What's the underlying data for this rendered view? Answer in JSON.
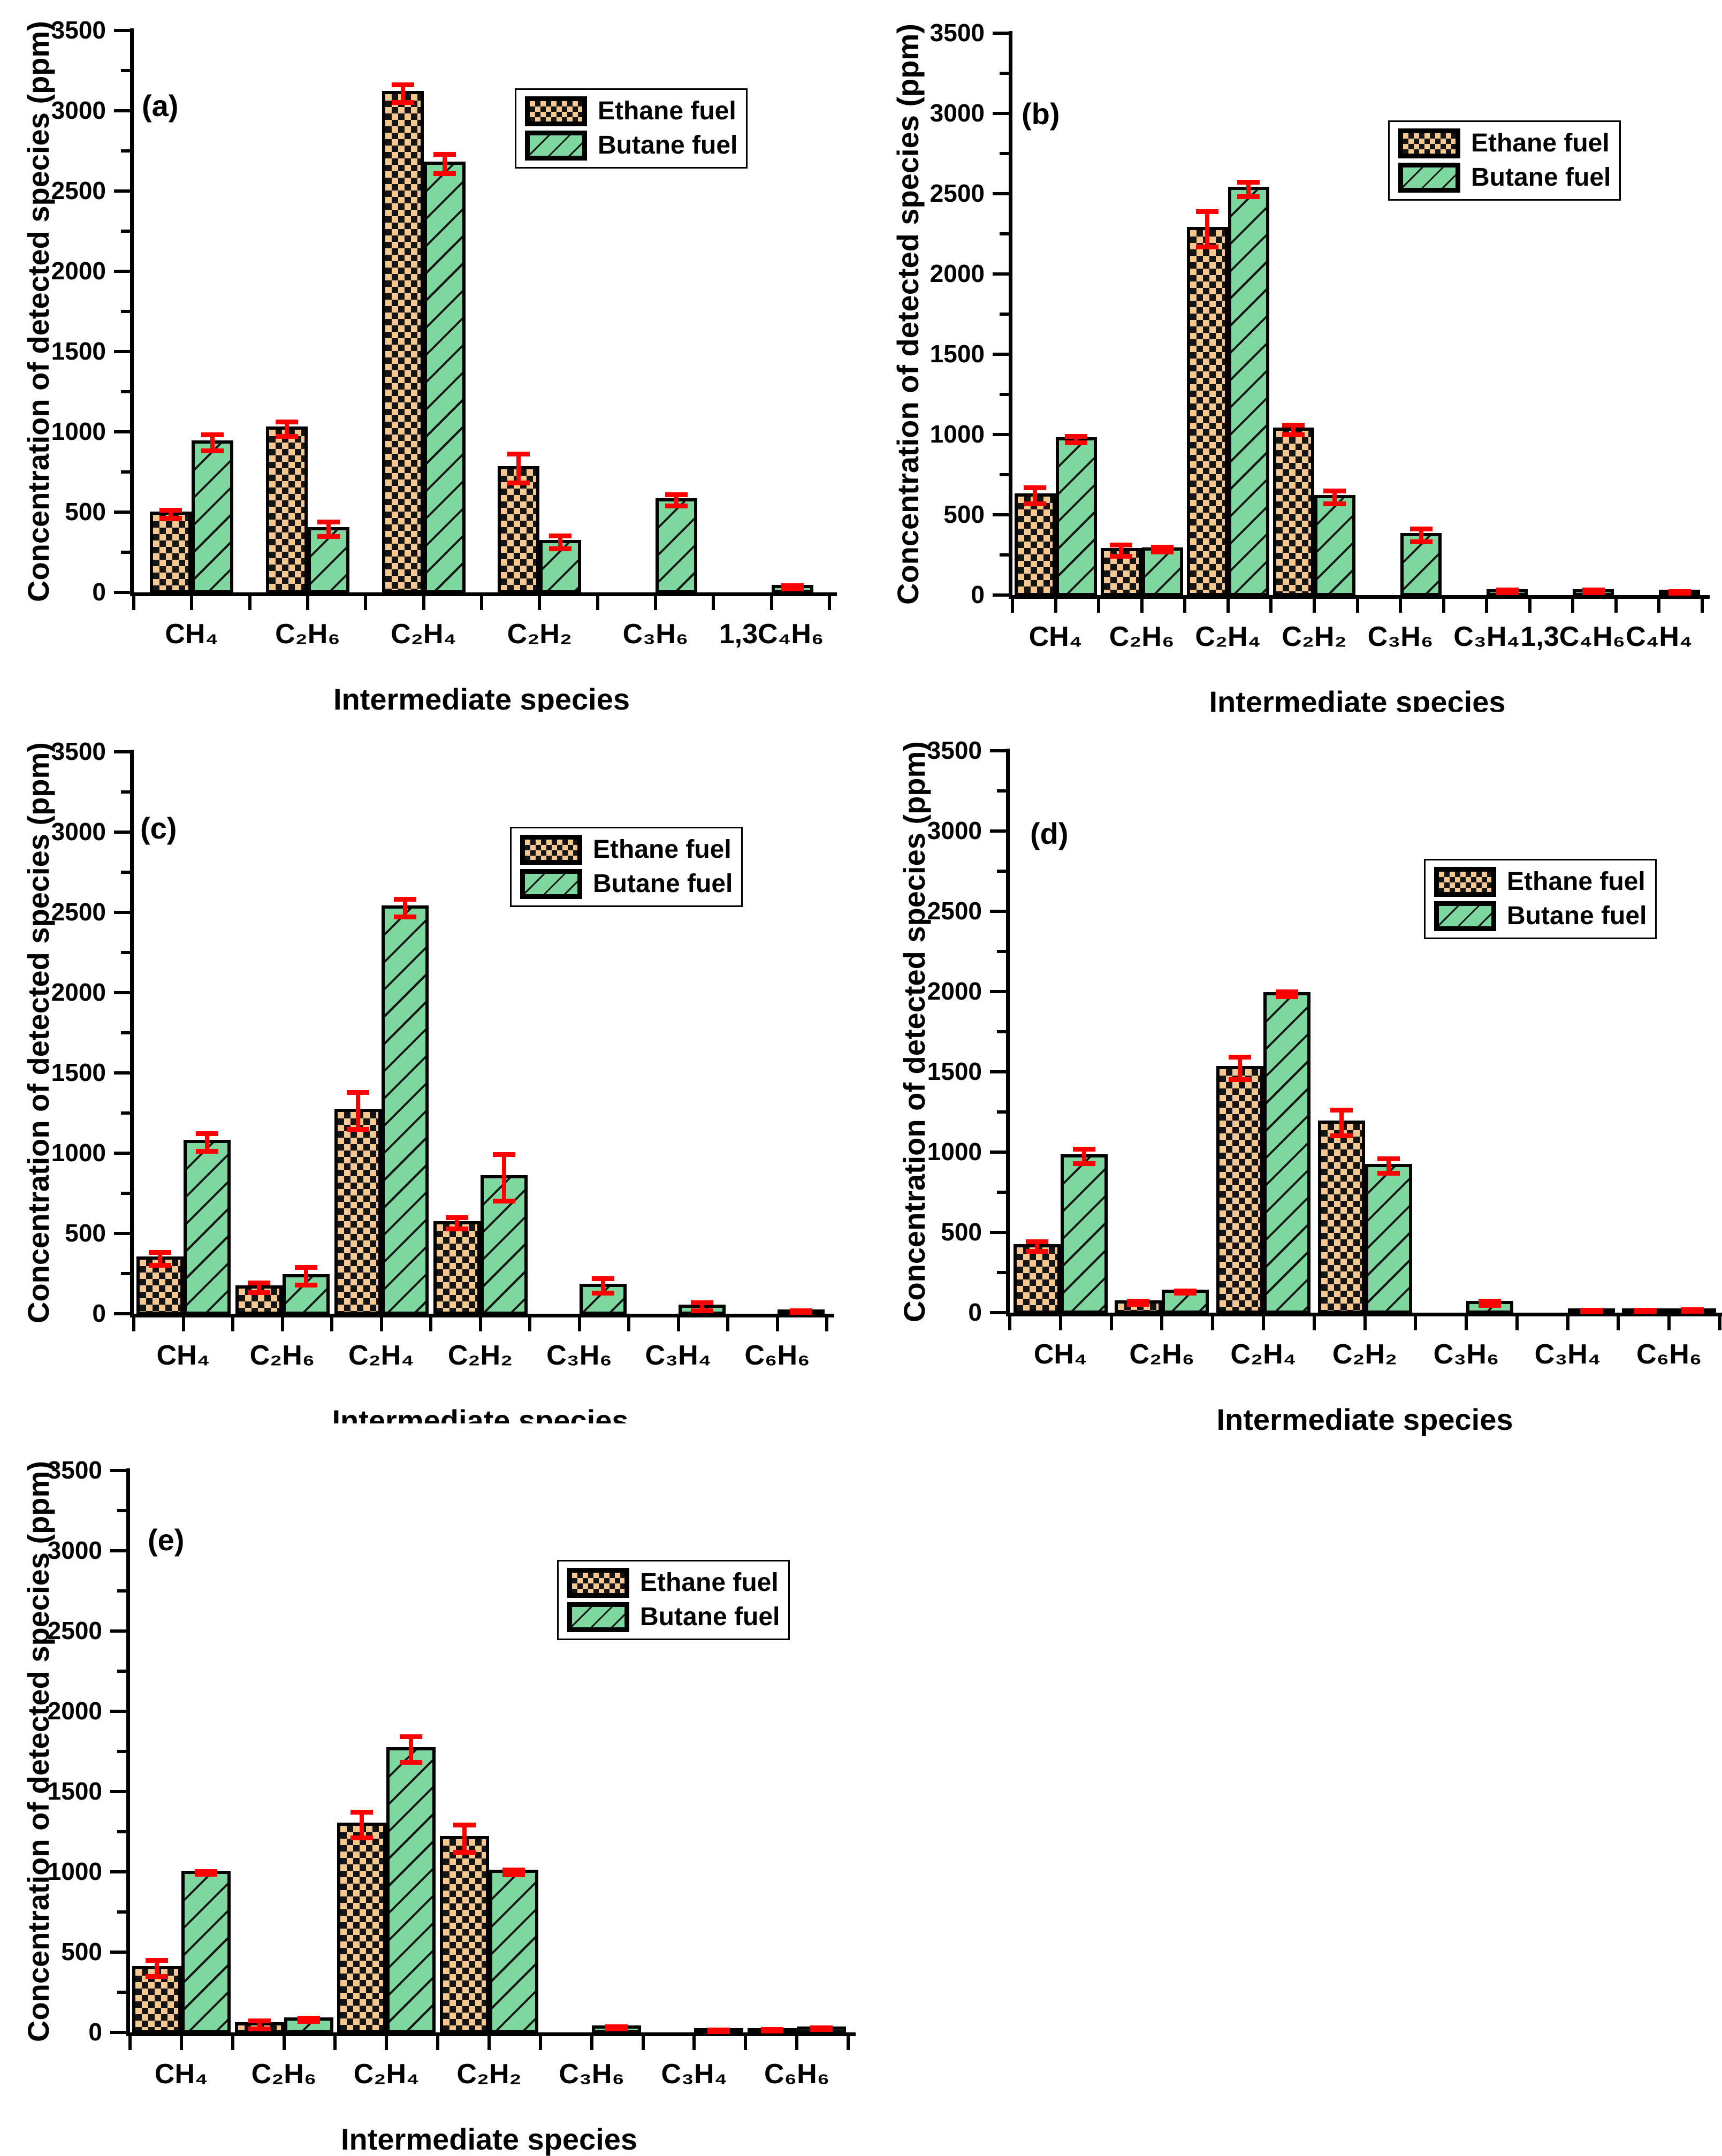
{
  "figure": {
    "description": "Concentration of detected intermediate species for ethane and butane fuels, five panels (a)-(e)",
    "legend": {
      "ethane": "Ethane fuel",
      "butane": "Butane fuel"
    }
  },
  "colors": {
    "ethane_fill": "#F5C88F",
    "butane_fill": "#7ED79E",
    "pattern_black": "#151515",
    "error_red": "#FF0000",
    "axis_black": "#000000"
  },
  "chart_data": [
    {
      "type": "bar",
      "panel_label": "(a)",
      "xlabel": "Intermediate species",
      "ylabel": "Concentration of detected species (ppm)",
      "ylim": [
        0,
        3500
      ],
      "ytick_step": 500,
      "yminor_step": 250,
      "grid": false,
      "legend_position": "top-right",
      "error_bars": true,
      "categories": [
        "CH₄",
        "C₂H₆",
        "C₂H₄",
        "C₂H₂",
        "C₃H₆",
        "1,3C₄H₆"
      ],
      "series": [
        {
          "name": "Ethane fuel",
          "values": [
            490,
            1020,
            3110,
            775,
            0,
            0
          ],
          "errors": [
            25,
            45,
            55,
            90,
            0,
            0
          ]
        },
        {
          "name": "Butane fuel",
          "values": [
            935,
            395,
            2670,
            315,
            575,
            35
          ],
          "errors": [
            50,
            45,
            60,
            40,
            35,
            10
          ]
        }
      ]
    },
    {
      "type": "bar",
      "panel_label": "(b)",
      "xlabel": "Intermediate species",
      "ylabel": "Concentration of detected species (ppm)",
      "ylim": [
        0,
        3500
      ],
      "ytick_step": 500,
      "yminor_step": 250,
      "grid": false,
      "legend_position": "top-right",
      "error_bars": true,
      "categories": [
        "CH₄",
        "C₂H₆",
        "C₂H₄",
        "C₂H₂",
        "C₃H₆",
        "C₃H₄",
        "1,3C₄H₆",
        "C₄H₄"
      ],
      "series": [
        {
          "name": "Ethane fuel",
          "values": [
            620,
            280,
            2280,
            1030,
            0,
            0,
            0,
            0
          ],
          "errors": [
            50,
            35,
            110,
            30,
            0,
            0,
            0,
            0
          ]
        },
        {
          "name": "Butane fuel",
          "values": [
            970,
            285,
            2530,
            610,
            375,
            25,
            25,
            20
          ],
          "errors": [
            20,
            15,
            45,
            40,
            40,
            8,
            8,
            5
          ]
        }
      ]
    },
    {
      "type": "bar",
      "panel_label": "(c)",
      "xlabel": "Intermediate species",
      "ylabel": "Concentration of detected species (ppm)",
      "ylim": [
        0,
        3500
      ],
      "ytick_step": 500,
      "yminor_step": 250,
      "grid": false,
      "legend_position": "top-right",
      "error_bars": true,
      "categories": [
        "CH₄",
        "C₂H₆",
        "C₂H₄",
        "C₂H₂",
        "C₃H₆",
        "C₃H₄",
        "C₆H₆"
      ],
      "series": [
        {
          "name": "Ethane fuel",
          "values": [
            345,
            165,
            1265,
            565,
            0,
            0,
            0
          ],
          "errors": [
            40,
            30,
            115,
            35,
            0,
            0,
            0
          ]
        },
        {
          "name": "Butane fuel",
          "values": [
            1070,
            235,
            2530,
            850,
            175,
            45,
            15
          ],
          "errors": [
            55,
            55,
            55,
            145,
            45,
            25,
            5
          ]
        }
      ]
    },
    {
      "type": "bar",
      "panel_label": "(d)",
      "xlabel": "Intermediate species",
      "ylabel": "Concentration of detected species (ppm)",
      "ylim": [
        0,
        3500
      ],
      "ytick_step": 500,
      "yminor_step": 250,
      "grid": false,
      "legend_position": "top-right",
      "error_bars": true,
      "categories": [
        "CH₄",
        "C₂H₆",
        "C₂H₄",
        "C₂H₂",
        "C₃H₆",
        "C₃H₄",
        "C₆H₆"
      ],
      "series": [
        {
          "name": "Ethane fuel",
          "values": [
            415,
            65,
            1525,
            1185,
            0,
            0,
            12
          ],
          "errors": [
            30,
            10,
            70,
            80,
            0,
            0,
            4
          ]
        },
        {
          "name": "Butane fuel",
          "values": [
            975,
            130,
            1985,
            915,
            60,
            12,
            15
          ],
          "errors": [
            45,
            8,
            15,
            45,
            12,
            4,
            5
          ]
        }
      ]
    },
    {
      "type": "bar",
      "panel_label": "(e)",
      "xlabel": "Intermediate species",
      "ylabel": "Concentration of detected species (ppm)",
      "ylim": [
        0,
        3500
      ],
      "ytick_step": 500,
      "yminor_step": 250,
      "grid": false,
      "legend_position": "top-right",
      "error_bars": true,
      "categories": [
        "CH₄",
        "C₂H₆",
        "C₂H₄",
        "C₂H₂",
        "C₃H₆",
        "C₃H₄",
        "C₆H₆"
      ],
      "series": [
        {
          "name": "Ethane fuel",
          "values": [
            400,
            50,
            1295,
            1210,
            0,
            0,
            15
          ],
          "errors": [
            50,
            25,
            80,
            85,
            0,
            0,
            5
          ]
        },
        {
          "name": "Butane fuel",
          "values": [
            995,
            80,
            1765,
            1000,
            30,
            12,
            25
          ],
          "errors": [
            8,
            10,
            80,
            15,
            8,
            4,
            6
          ]
        }
      ]
    }
  ]
}
